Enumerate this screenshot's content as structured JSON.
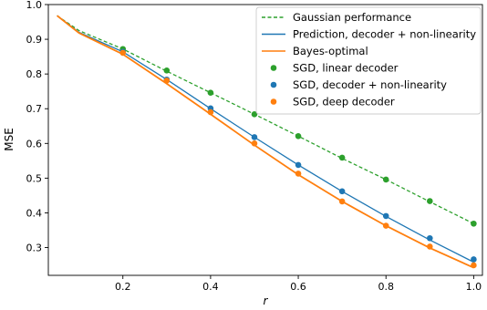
{
  "chart_data": {
    "type": "line",
    "title": "",
    "xlabel": "r",
    "ylabel": "MSE",
    "xlim": [
      0.03,
      1.02
    ],
    "ylim": [
      0.22,
      1.0
    ],
    "xticks": [
      "0.2",
      "0.4",
      "0.6",
      "0.8",
      "1.0"
    ],
    "yticks": [
      "0.3",
      "0.4",
      "0.5",
      "0.6",
      "0.7",
      "0.8",
      "0.9",
      "1.0"
    ],
    "grid": false,
    "legend_position": "top-right",
    "series": [
      {
        "name": "Gaussian performance",
        "kind": "dashed-line",
        "color": "#2ca02c",
        "x": [
          0.05,
          0.1,
          0.2,
          0.3,
          0.4,
          0.5,
          0.6,
          0.7,
          0.8,
          0.9,
          1.0
        ],
        "y": [
          0.968,
          0.925,
          0.872,
          0.808,
          0.746,
          0.684,
          0.621,
          0.557,
          0.496,
          0.432,
          0.369
        ]
      },
      {
        "name": "Prediction, decoder + non-linearity",
        "kind": "line",
        "color": "#1f77b4",
        "x": [
          0.05,
          0.1,
          0.2,
          0.3,
          0.4,
          0.5,
          0.6,
          0.7,
          0.8,
          0.9,
          1.0
        ],
        "y": [
          0.968,
          0.92,
          0.864,
          0.784,
          0.7,
          0.618,
          0.538,
          0.462,
          0.39,
          0.322,
          0.258
        ]
      },
      {
        "name": "Bayes-optimal",
        "kind": "line",
        "color": "#ff7f0e",
        "x": [
          0.05,
          0.1,
          0.2,
          0.3,
          0.4,
          0.5,
          0.6,
          0.7,
          0.8,
          0.9,
          1.0
        ],
        "y": [
          0.968,
          0.918,
          0.857,
          0.772,
          0.684,
          0.595,
          0.51,
          0.433,
          0.363,
          0.299,
          0.242
        ]
      },
      {
        "name": "SGD, linear decoder",
        "kind": "scatter",
        "color": "#2ca02c",
        "x": [
          0.2,
          0.3,
          0.4,
          0.5,
          0.6,
          0.7,
          0.8,
          0.9,
          1.0
        ],
        "y": [
          0.872,
          0.81,
          0.746,
          0.684,
          0.621,
          0.559,
          0.496,
          0.434,
          0.369
        ]
      },
      {
        "name": "SGD, decoder + non-linearity",
        "kind": "scatter",
        "color": "#1f77b4",
        "x": [
          0.2,
          0.3,
          0.4,
          0.5,
          0.6,
          0.7,
          0.8,
          0.9,
          1.0
        ],
        "y": [
          0.864,
          0.784,
          0.701,
          0.618,
          0.538,
          0.462,
          0.391,
          0.327,
          0.266
        ]
      },
      {
        "name": "SGD, deep decoder",
        "kind": "scatter",
        "color": "#ff7f0e",
        "x": [
          0.2,
          0.3,
          0.4,
          0.5,
          0.6,
          0.7,
          0.8,
          0.9,
          1.0
        ],
        "y": [
          0.861,
          0.781,
          0.69,
          0.6,
          0.513,
          0.433,
          0.363,
          0.303,
          0.249
        ]
      }
    ]
  }
}
